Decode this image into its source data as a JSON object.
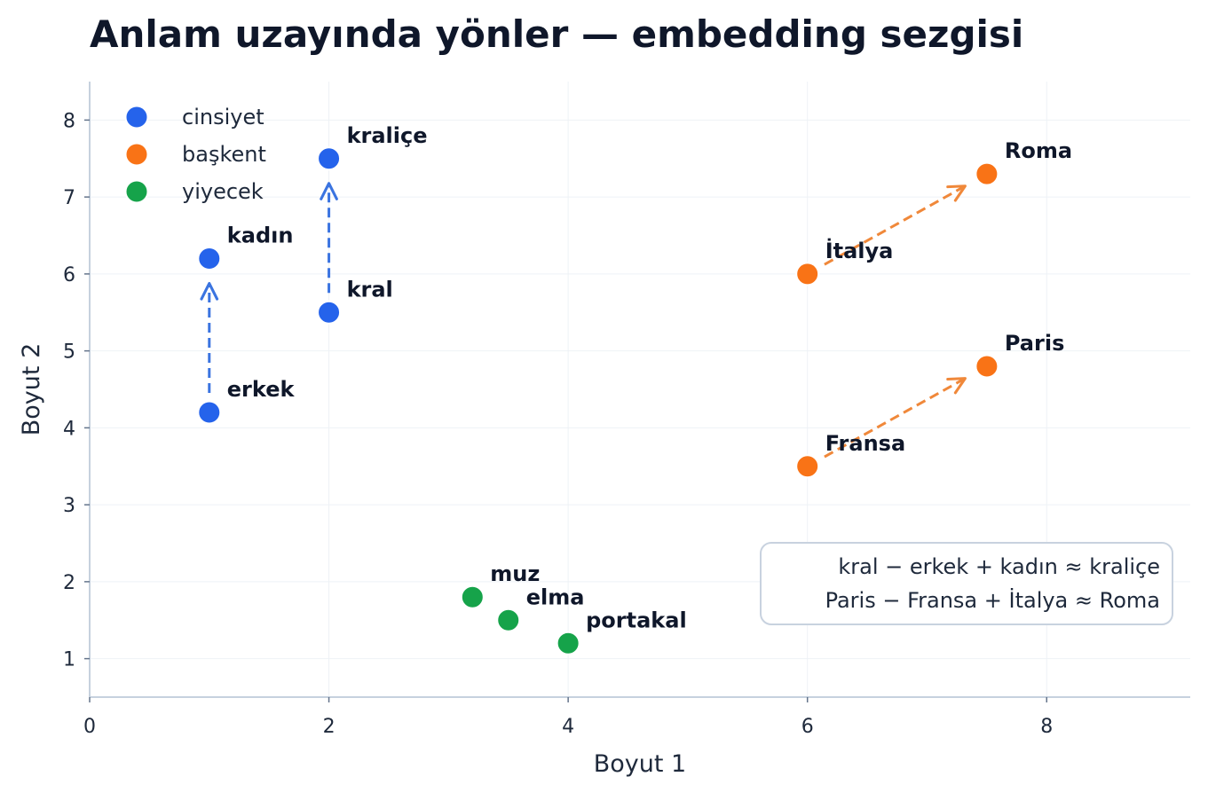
{
  "chart_data": {
    "type": "scatter",
    "title": "Anlam uzayında yönler — embedding sezgisi",
    "xlabel": "Boyut 1",
    "ylabel": "Boyut 2",
    "xlim": [
      0,
      9.2
    ],
    "ylim": [
      0.5,
      8.5
    ],
    "xticks": [
      0,
      2,
      4,
      6,
      8
    ],
    "yticks": [
      1,
      2,
      3,
      4,
      5,
      6,
      7,
      8
    ],
    "grid": true,
    "legend_position": "top-left",
    "series": [
      {
        "name": "cinsiyet",
        "color": "#2563eb",
        "points": [
          {
            "label": "erkek",
            "x": 1,
            "y": 4.2
          },
          {
            "label": "kadın",
            "x": 1,
            "y": 6.2
          },
          {
            "label": "kral",
            "x": 2,
            "y": 5.5
          },
          {
            "label": "kraliçe",
            "x": 2,
            "y": 7.5
          }
        ]
      },
      {
        "name": "başkent",
        "color": "#f97316",
        "points": [
          {
            "label": "Fransa",
            "x": 6,
            "y": 3.5
          },
          {
            "label": "Paris",
            "x": 7.5,
            "y": 4.8
          },
          {
            "label": "İtalya",
            "x": 6,
            "y": 6.0
          },
          {
            "label": "Roma",
            "x": 7.5,
            "y": 7.3
          }
        ]
      },
      {
        "name": "yiyecek",
        "color": "#16a34a",
        "points": [
          {
            "label": "muz",
            "x": 3.2,
            "y": 1.8
          },
          {
            "label": "elma",
            "x": 3.5,
            "y": 1.5
          },
          {
            "label": "portakal",
            "x": 4,
            "y": 1.2
          }
        ]
      }
    ],
    "arrows": [
      {
        "from": [
          1,
          4.2
        ],
        "to": [
          1,
          6.2
        ],
        "color": "#3b74e0"
      },
      {
        "from": [
          2,
          5.5
        ],
        "to": [
          2,
          7.5
        ],
        "color": "#3b74e0"
      },
      {
        "from": [
          6,
          3.5
        ],
        "to": [
          7.5,
          4.8
        ],
        "color": "#f0883a"
      },
      {
        "from": [
          6,
          6.0
        ],
        "to": [
          7.5,
          7.3
        ],
        "color": "#f0883a"
      }
    ],
    "annotation": {
      "lines": [
        "kral − erkek + kadın ≈ kraliçe",
        "Paris − Fransa + İtalya ≈ Roma"
      ],
      "position": "bottom-right"
    }
  }
}
